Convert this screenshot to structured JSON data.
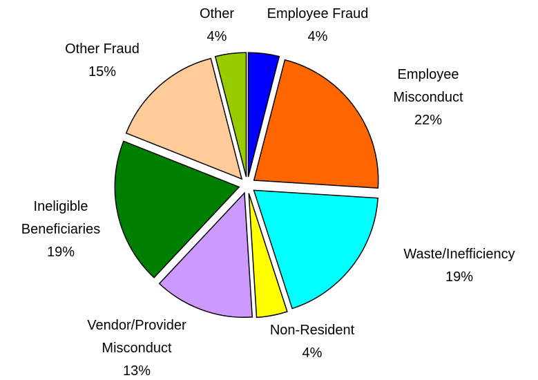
{
  "chart_data": {
    "type": "pie",
    "categories": [
      "Employee Fraud",
      "Employee Misconduct",
      "Waste/Inefficiency",
      "Non-Resident",
      "Vendor/Provider Misconduct",
      "Ineligible Beneficiaries",
      "Other Fraud",
      "Other"
    ],
    "values": [
      4,
      22,
      19,
      4,
      13,
      19,
      15,
      4
    ],
    "value_labels": [
      "4%",
      "22%",
      "19%",
      "4%",
      "13%",
      "19%",
      "15%",
      "4%"
    ],
    "colors": [
      "#0000ff",
      "#ff6600",
      "#00ffff",
      "#ffff00",
      "#cc99ff",
      "#008000",
      "#ffcc99",
      "#99cc00"
    ]
  }
}
